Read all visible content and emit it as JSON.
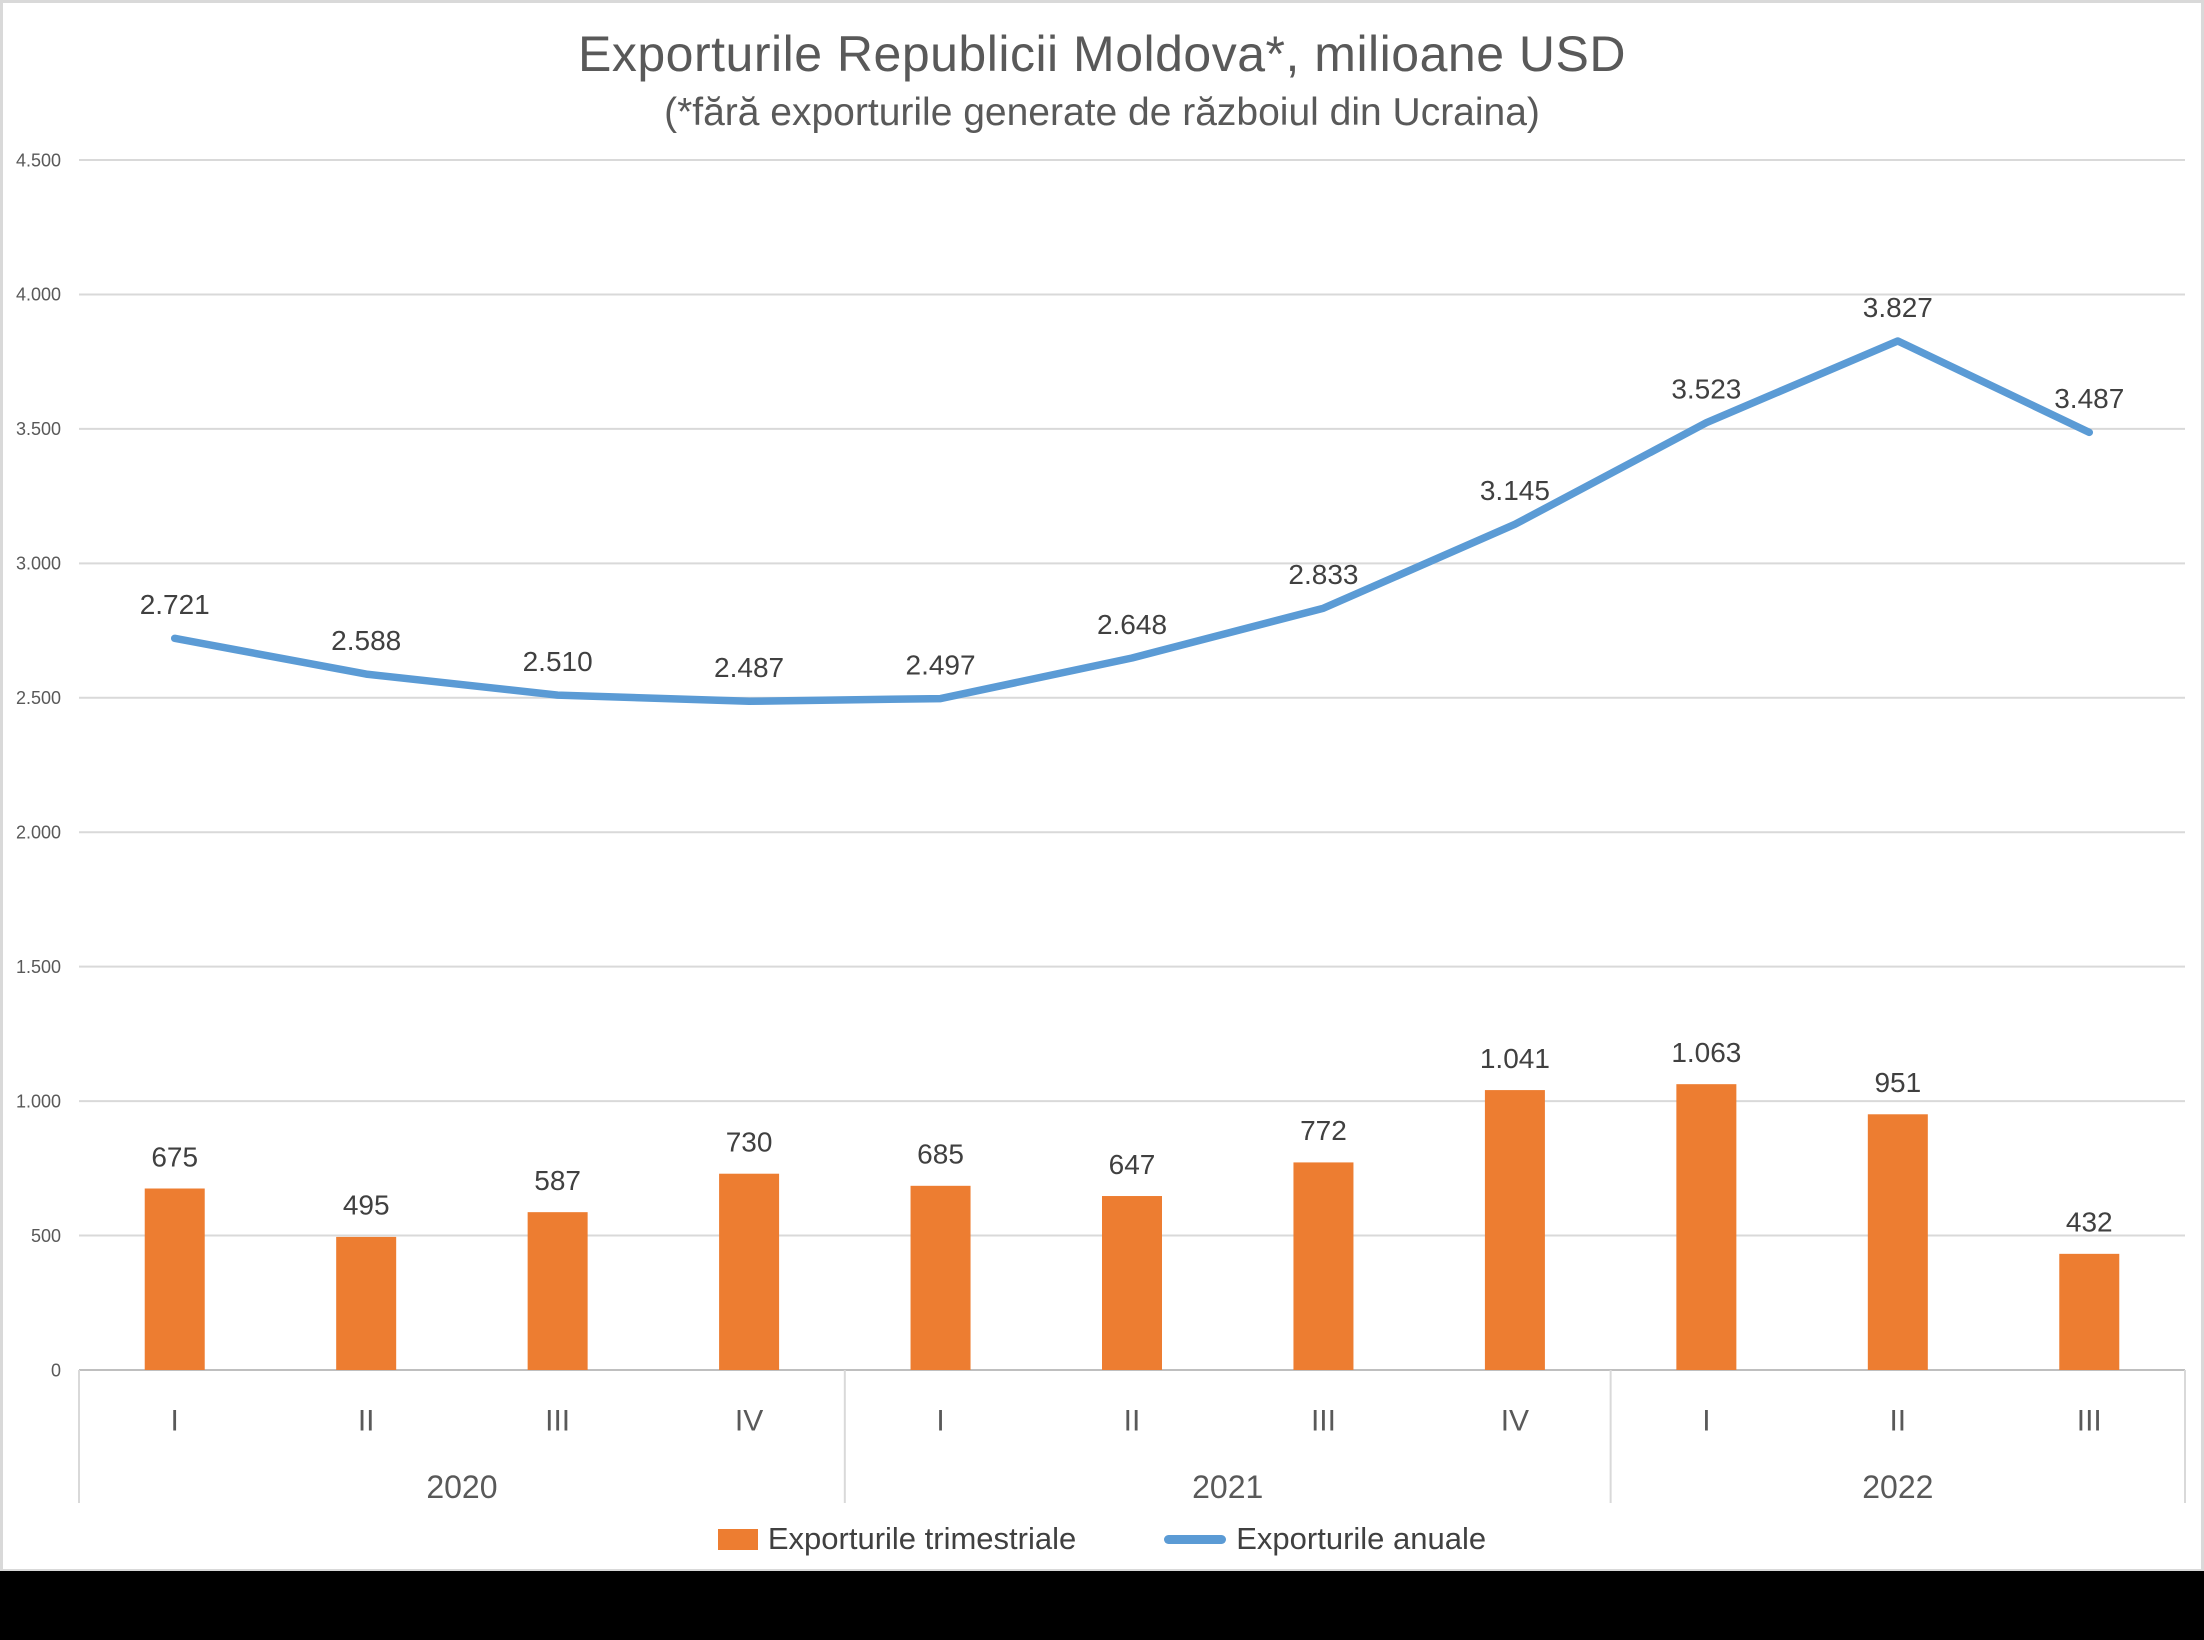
{
  "title": "Exporturile Republicii Moldova*, milioane USD",
  "subtitle": "(*fără exporturile generate de războiul din Ucraina)",
  "chart_data": {
    "type": "combo-bar-line",
    "categories": [
      "I",
      "II",
      "III",
      "IV",
      "I",
      "II",
      "III",
      "IV",
      "I",
      "II",
      "III"
    ],
    "year_groups": [
      {
        "label": "2020",
        "span": 4
      },
      {
        "label": "2021",
        "span": 4
      },
      {
        "label": "2022",
        "span": 3
      }
    ],
    "series": [
      {
        "name": "Exporturile trimestriale",
        "type": "bar",
        "color": "#ED7D31",
        "values": [
          675,
          495,
          587,
          730,
          685,
          647,
          772,
          1041,
          1063,
          951,
          432
        ]
      },
      {
        "name": "Exporturile anuale",
        "type": "line",
        "color": "#5B9BD5",
        "values": [
          2721,
          2588,
          2510,
          2487,
          2497,
          2648,
          2833,
          3145,
          3523,
          3827,
          3487
        ]
      }
    ],
    "ylim": [
      0,
      4500
    ],
    "ytick_step": 500,
    "grid": true,
    "legend_position": "bottom",
    "number_format": "thousands-dot",
    "colors": {
      "gridline": "#D9D9D9",
      "axis_line": "#BFBFBF",
      "tick_text": "#595959",
      "data_label_text": "#404040",
      "title_text": "#595959",
      "background": "#FFFFFF",
      "bottom_band": "#000000"
    }
  }
}
